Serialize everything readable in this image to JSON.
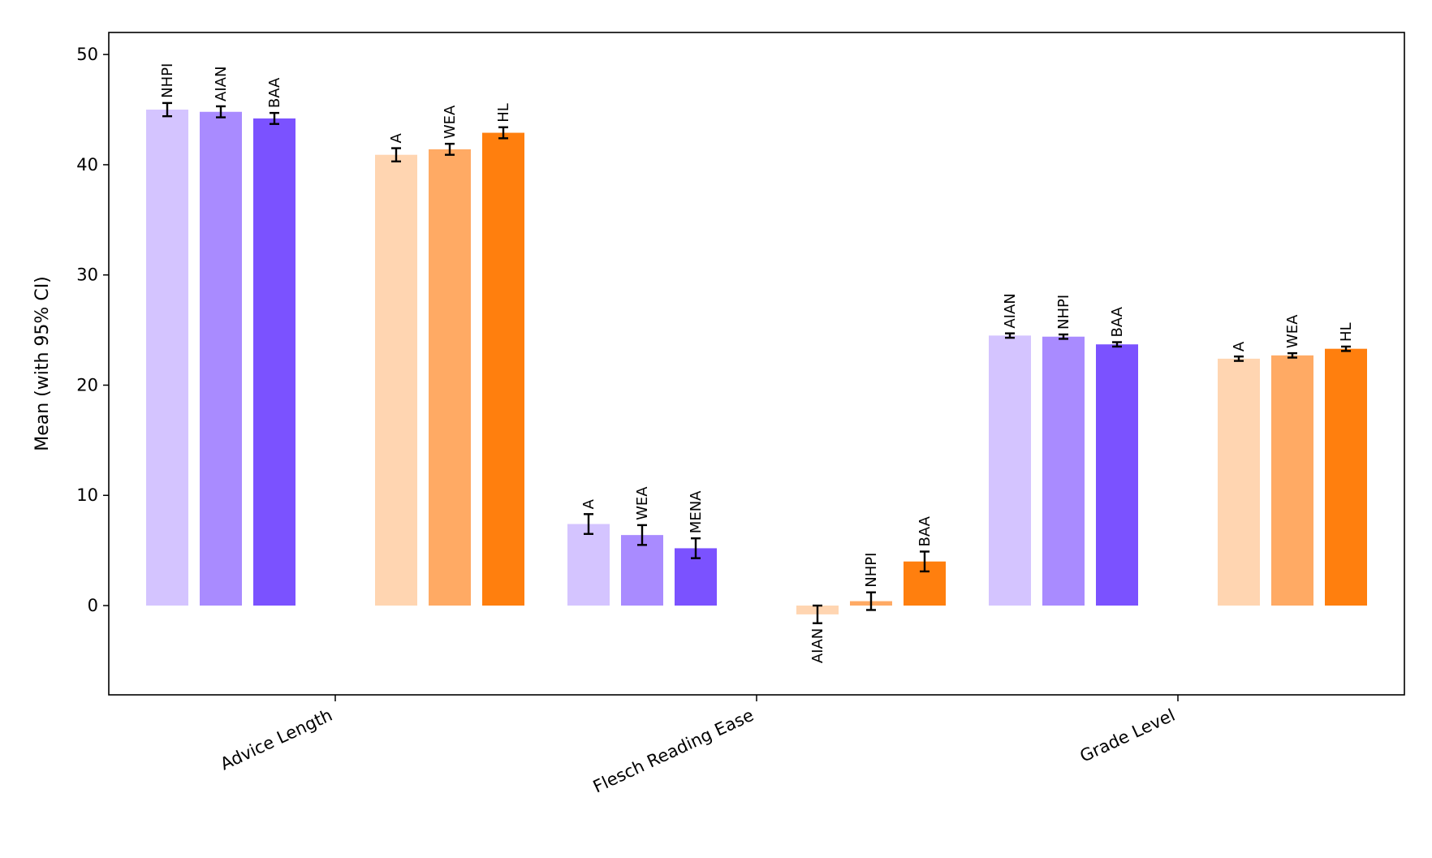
{
  "chart_data": {
    "type": "bar",
    "title": "",
    "xlabel": "",
    "ylabel": "Mean (with 95% CI)",
    "ylim": [
      -8.1,
      52.0
    ],
    "yticks": [
      0,
      10,
      20,
      30,
      40,
      50
    ],
    "grid": false,
    "legend": "none",
    "categories": [
      "Advice Length",
      "Flesch Reading Ease",
      "Grade Level"
    ],
    "groups": [
      {
        "category": "Advice Length",
        "bars": [
          {
            "label": "NHPI",
            "value": 45.0,
            "ci": 0.6,
            "color": "#d4c4ff",
            "side": "purple"
          },
          {
            "label": "AIAN",
            "value": 44.8,
            "ci": 0.5,
            "color": "#a98bff",
            "side": "purple"
          },
          {
            "label": "BAA",
            "value": 44.2,
            "ci": 0.5,
            "color": "#7b52ff",
            "side": "purple"
          },
          {
            "label": "A",
            "value": 40.9,
            "ci": 0.6,
            "color": "#ffd5b1",
            "side": "orange"
          },
          {
            "label": "WEA",
            "value": 41.4,
            "ci": 0.5,
            "color": "#ffaa64",
            "side": "orange"
          },
          {
            "label": "HL",
            "value": 42.9,
            "ci": 0.5,
            "color": "#ff7f0e",
            "side": "orange"
          }
        ]
      },
      {
        "category": "Flesch Reading Ease",
        "bars": [
          {
            "label": "A",
            "value": 7.4,
            "ci": 0.9,
            "color": "#d4c4ff",
            "side": "purple"
          },
          {
            "label": "WEA",
            "value": 6.4,
            "ci": 0.9,
            "color": "#a98bff",
            "side": "purple"
          },
          {
            "label": "MENA",
            "value": 5.2,
            "ci": 0.9,
            "color": "#7b52ff",
            "side": "purple"
          },
          {
            "label": "AIAN",
            "value": -0.8,
            "ci": 0.8,
            "color": "#ffd5b1",
            "side": "orange"
          },
          {
            "label": "NHPI",
            "value": 0.4,
            "ci": 0.8,
            "color": "#ffaa64",
            "side": "orange"
          },
          {
            "label": "BAA",
            "value": 4.0,
            "ci": 0.9,
            "color": "#ff7f0e",
            "side": "orange"
          }
        ]
      },
      {
        "category": "Grade Level",
        "bars": [
          {
            "label": "AIAN",
            "value": 24.5,
            "ci": 0.2,
            "color": "#d4c4ff",
            "side": "purple"
          },
          {
            "label": "NHPI",
            "value": 24.4,
            "ci": 0.2,
            "color": "#a98bff",
            "side": "purple"
          },
          {
            "label": "BAA",
            "value": 23.7,
            "ci": 0.2,
            "color": "#7b52ff",
            "side": "purple"
          },
          {
            "label": "A",
            "value": 22.4,
            "ci": 0.2,
            "color": "#ffd5b1",
            "side": "orange"
          },
          {
            "label": "WEA",
            "value": 22.7,
            "ci": 0.2,
            "color": "#ffaa64",
            "side": "orange"
          },
          {
            "label": "HL",
            "value": 23.3,
            "ci": 0.2,
            "color": "#ff7f0e",
            "side": "orange"
          }
        ]
      }
    ]
  }
}
